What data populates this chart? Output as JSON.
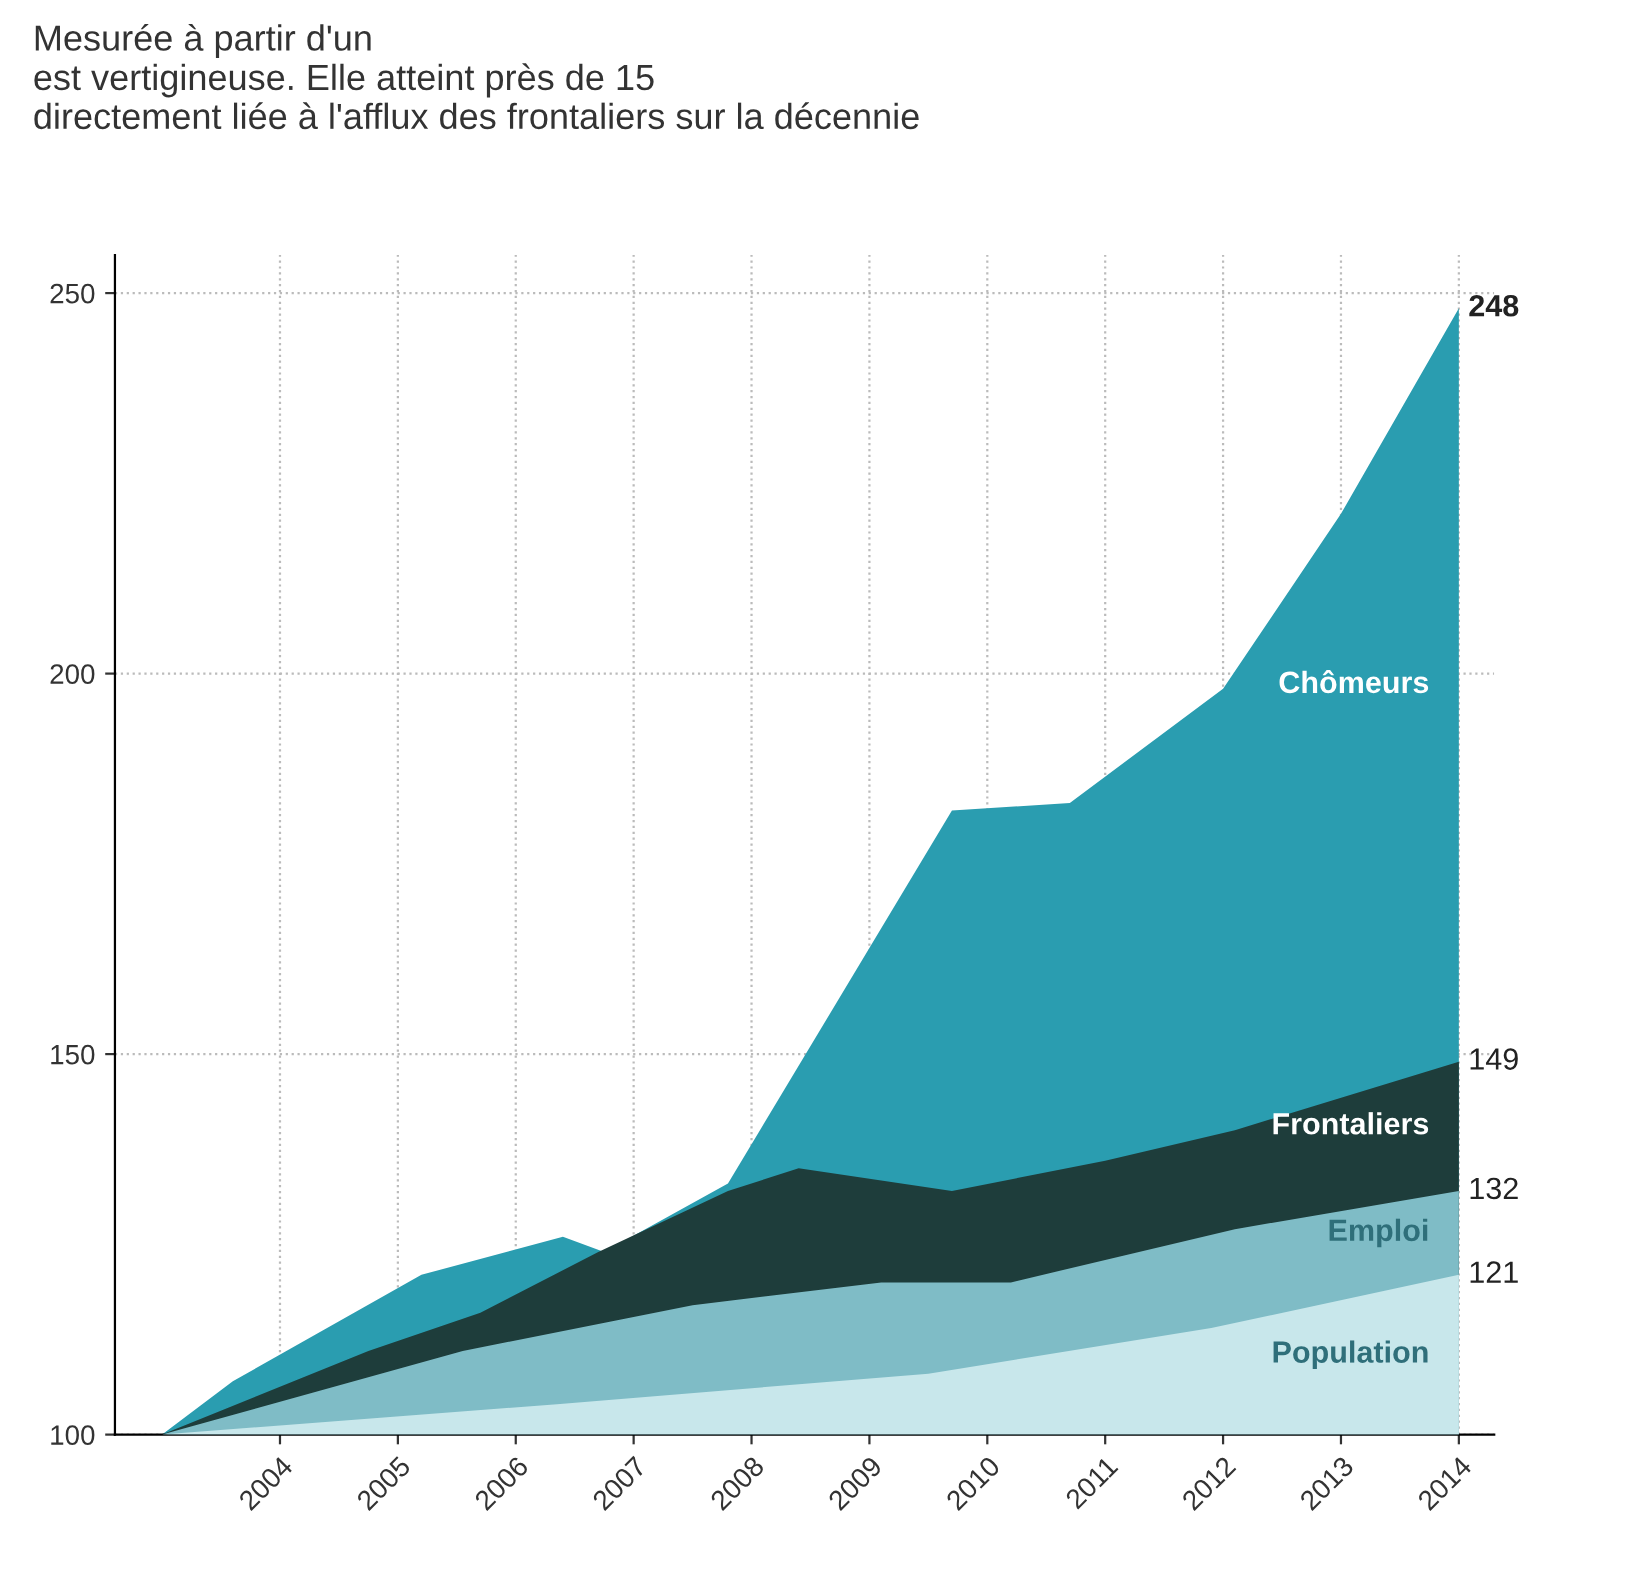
{
  "chart_data": {
    "type": "area",
    "subtitle": "Mesurée à partir d'un\nest vertigineuse. Elle atteint près de 15\ndirectement liée à l'afflux des frontaliers sur la décennie",
    "xlim": [
      2002.6,
      2014.3
    ],
    "xticks": [
      2004,
      2005,
      2006,
      2007,
      2008,
      2009,
      2010,
      2011,
      2012,
      2013,
      2014
    ],
    "ylim": [
      100,
      255
    ],
    "yticks": [
      100,
      150,
      200,
      250
    ],
    "grid": true,
    "line_style": "dotted",
    "series": [
      {
        "name": "Chômeurs",
        "color": "#2a9db0",
        "x": [
          2003,
          2003.6,
          2005.2,
          2006.4,
          2006.75,
          2007.8,
          2009.7,
          2010.7,
          2012.0,
          2013.0,
          2014
        ],
        "values": [
          100,
          107,
          121,
          126,
          124,
          133,
          182,
          183,
          198,
          221,
          248
        ],
        "value_labels": [
          null,
          null,
          null,
          null,
          null,
          null,
          null,
          null,
          null,
          null,
          "248"
        ]
      },
      {
        "name": "Frontaliers",
        "color": "#1e3d3b",
        "x": [
          2003,
          2004.75,
          2005.7,
          2006.7,
          2007.8,
          2008.4,
          2009.7,
          2011.0,
          2012.1,
          2014
        ],
        "values": [
          100,
          111,
          116,
          124,
          132,
          135,
          132,
          136,
          140,
          149
        ],
        "value_labels": [
          null,
          null,
          null,
          null,
          null,
          null,
          null,
          null,
          null,
          "149"
        ]
      },
      {
        "name": "Emploi",
        "color": "#7fbcc6",
        "x": [
          2003,
          2005.55,
          2007.5,
          2009.1,
          2010.2,
          2012.1,
          2014
        ],
        "values": [
          100,
          111,
          117,
          120,
          120,
          127,
          132
        ],
        "value_labels": [
          null,
          null,
          null,
          null,
          null,
          null,
          "132"
        ]
      },
      {
        "name": "Population",
        "color": "#c8e7eb",
        "x": [
          2003,
          2006.35,
          2009.5,
          2011.9,
          2014
        ],
        "values": [
          100,
          104,
          108,
          114,
          121
        ],
        "value_labels": [
          null,
          null,
          null,
          null,
          "121"
        ]
      }
    ]
  }
}
